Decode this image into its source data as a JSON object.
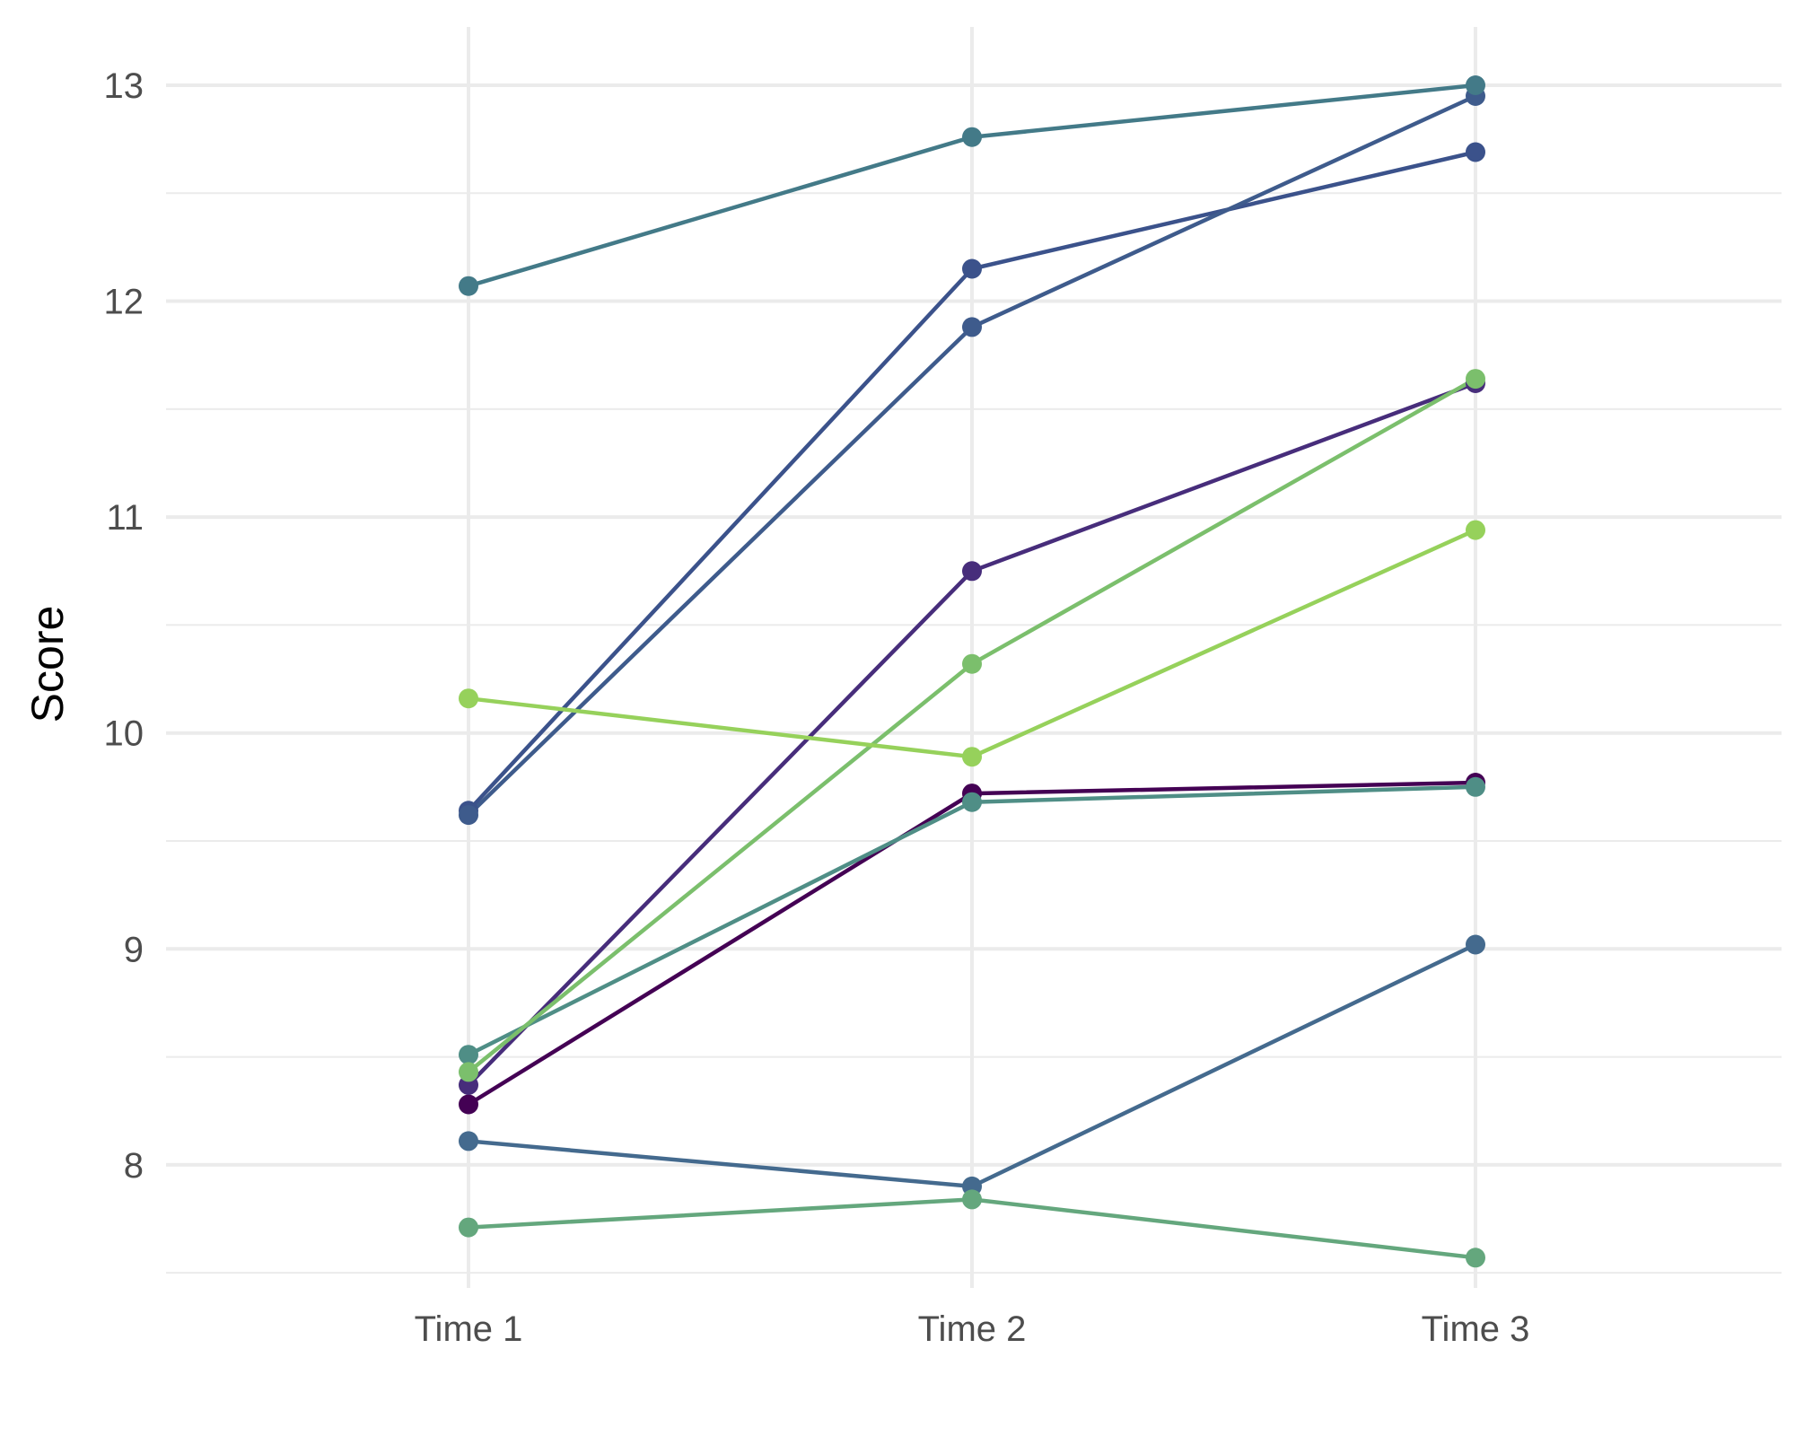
{
  "chart_data": {
    "type": "line",
    "title": "",
    "xlabel": "",
    "ylabel": "Score",
    "categories": [
      "Time 1",
      "Time 2",
      "Time 3"
    ],
    "ylim": [
      7.43,
      13.27
    ],
    "yticks": [
      8,
      9,
      10,
      11,
      12,
      13
    ],
    "grid": true,
    "legend": "none",
    "series": [
      {
        "color": "#440154",
        "values": [
          8.28,
          9.72,
          9.77
        ]
      },
      {
        "color": "#472D7B",
        "values": [
          8.37,
          10.75,
          11.62
        ]
      },
      {
        "color": "#3B528B",
        "values": [
          9.64,
          12.15,
          12.69
        ]
      },
      {
        "color": "#3E5B8C",
        "values": [
          9.62,
          11.88,
          12.95
        ]
      },
      {
        "color": "#446A8E",
        "values": [
          8.11,
          7.9,
          9.02
        ]
      },
      {
        "color": "#437A88",
        "values": [
          12.07,
          12.76,
          13.0
        ]
      },
      {
        "color": "#4F8E86",
        "values": [
          8.51,
          9.68,
          9.75
        ]
      },
      {
        "color": "#64A77D",
        "values": [
          7.71,
          7.84,
          7.57
        ]
      },
      {
        "color": "#7BBF6C",
        "values": [
          8.43,
          10.32,
          11.64
        ]
      },
      {
        "color": "#96D15B",
        "values": [
          10.16,
          9.89,
          10.94
        ]
      }
    ]
  }
}
